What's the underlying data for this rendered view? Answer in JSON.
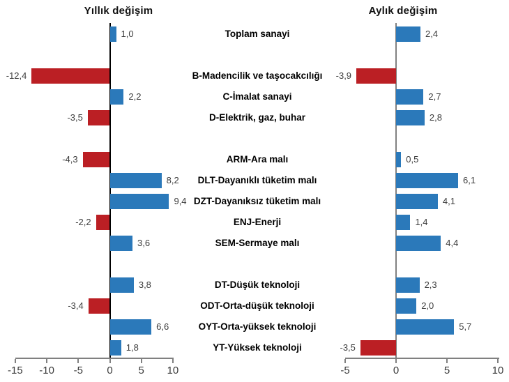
{
  "page": {
    "background": "#ffffff",
    "description_note": "Dual horizontal bar chart: annual and monthly change by industry grouping"
  },
  "colors": {
    "positive_bar": "#2B79BA",
    "negative_bar": "#BB1F24",
    "axis_line": "#808080",
    "annual_zero_line": "#000000",
    "monthly_zero_line": "#808080",
    "title_text": "#111111",
    "category_text": "#000000",
    "value_text": "#3d3d3d",
    "tick_text": "#3a3a3a"
  },
  "categories": [
    "Toplam sanayi",
    "B-Madencilik ve taşocakcılığı",
    "C-İmalat sanayi",
    "D-Elektrik, gaz, buhar",
    "ARM-Ara malı",
    "DLT-Dayanıklı tüketim malı",
    "DZT-Dayanıksız tüketim malı",
    "ENJ-Enerji",
    "SEM-Sermaye malı",
    "DT-Düşük teknoloji",
    "ODT-Orta-düşük teknoloji",
    "OYT-Orta-yüksek teknoloji",
    "YT-Yüksek teknoloji"
  ],
  "layout_hints": {
    "group_breaks_after": [
      0,
      3,
      8
    ],
    "legend": false,
    "grid": false,
    "category_labels_position": "center-between-panels"
  },
  "chart_data": [
    {
      "type": "bar",
      "orientation": "horizontal",
      "panel": "left",
      "title": "Yıllık değişim",
      "categories": [
        "Toplam sanayi",
        "B-Madencilik ve taşocakcılığı",
        "C-İmalat sanayi",
        "D-Elektrik, gaz, buhar",
        "ARM-Ara malı",
        "DLT-Dayanıklı tüketim malı",
        "DZT-Dayanıksız tüketim malı",
        "ENJ-Enerji",
        "SEM-Sermaye malı",
        "DT-Düşük teknoloji",
        "ODT-Orta-düşük teknoloji",
        "OYT-Orta-yüksek teknoloji",
        "YT-Yüksek teknoloji"
      ],
      "values": [
        1.0,
        -12.4,
        2.2,
        -3.5,
        -4.3,
        8.2,
        9.4,
        -2.2,
        3.6,
        3.8,
        -3.4,
        6.6,
        1.8
      ],
      "value_labels": [
        "1,0",
        "-12,4",
        "2,2",
        "-3,5",
        "-4,3",
        "8,2",
        "9,4",
        "-2,2",
        "3,6",
        "3,8",
        "-3,4",
        "6,6",
        "1,8"
      ],
      "xlabel": "",
      "ylabel": "",
      "xlim": [
        -15,
        10
      ],
      "xtick_values": [
        -15,
        -10,
        -5,
        0,
        5,
        10
      ],
      "xtick_labels": [
        "-15",
        "-10",
        "-5",
        "0",
        "5",
        "10"
      ]
    },
    {
      "type": "bar",
      "orientation": "horizontal",
      "panel": "right",
      "title": "Aylık değişim",
      "categories": [
        "Toplam sanayi",
        "B-Madencilik ve taşocakcılığı",
        "C-İmalat sanayi",
        "D-Elektrik, gaz, buhar",
        "ARM-Ara malı",
        "DLT-Dayanıklı tüketim malı",
        "DZT-Dayanıksız tüketim malı",
        "ENJ-Enerji",
        "SEM-Sermaye malı",
        "DT-Düşük teknoloji",
        "ODT-Orta-düşük teknoloji",
        "OYT-Orta-yüksek teknoloji",
        "YT-Yüksek teknoloji"
      ],
      "values": [
        2.4,
        -3.9,
        2.7,
        2.8,
        0.5,
        6.1,
        4.1,
        1.4,
        4.4,
        2.3,
        2.0,
        5.7,
        -3.5
      ],
      "value_labels": [
        "2,4",
        "-3,9",
        "2,7",
        "2,8",
        "0,5",
        "6,1",
        "4,1",
        "1,4",
        "4,4",
        "2,3",
        "2,0",
        "5,7",
        "-3,5"
      ],
      "xlabel": "",
      "ylabel": "",
      "xlim": [
        -5,
        10
      ],
      "xtick_values": [
        -5,
        0,
        5,
        10
      ],
      "xtick_labels": [
        "-5",
        "0",
        "5",
        "10"
      ]
    }
  ]
}
